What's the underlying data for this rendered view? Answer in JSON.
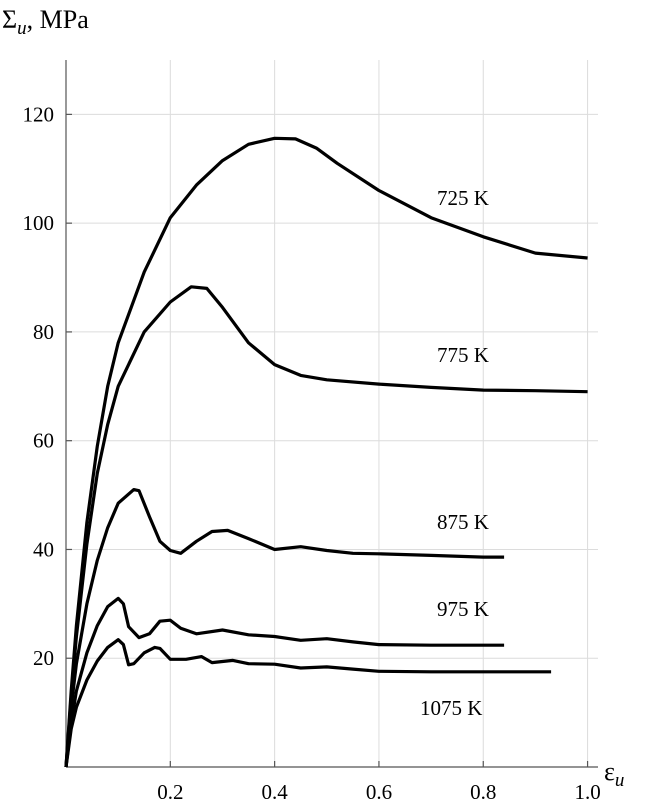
{
  "chart_data": {
    "type": "line",
    "ylabel_symbol": "Σ",
    "ylabel_sub": "u",
    "ylabel_unit": ", MPa",
    "xlabel_symbol": "ε",
    "xlabel_sub": "u",
    "xlim": [
      0,
      1.02
    ],
    "ylim": [
      0,
      130
    ],
    "xticks": [
      0.2,
      0.4,
      0.6,
      0.8,
      {
        "value": 1,
        "label": "1.0"
      }
    ],
    "yticks": [
      20,
      40,
      60,
      80,
      100,
      120
    ],
    "grid": true,
    "series": [
      {
        "name": "725 K",
        "color": "#000000",
        "x": [
          0,
          0.01,
          0.02,
          0.04,
          0.06,
          0.08,
          0.1,
          0.15,
          0.2,
          0.25,
          0.3,
          0.35,
          0.4,
          0.44,
          0.48,
          0.52,
          0.6,
          0.7,
          0.8,
          0.9,
          1.0
        ],
        "values": [
          0,
          14,
          26,
          45,
          59,
          70,
          78,
          91,
          101,
          107,
          111.5,
          114.5,
          115.6,
          115.5,
          113.8,
          111,
          106,
          101,
          97.5,
          94.5,
          93.6
        ]
      },
      {
        "name": "775 K",
        "color": "#000000",
        "x": [
          0,
          0.01,
          0.02,
          0.04,
          0.06,
          0.08,
          0.1,
          0.15,
          0.2,
          0.24,
          0.27,
          0.3,
          0.35,
          0.4,
          0.45,
          0.5,
          0.6,
          0.7,
          0.8,
          0.9,
          1.0
        ],
        "values": [
          0,
          13,
          24,
          41,
          54,
          63,
          70,
          80,
          85.5,
          88.3,
          88,
          84.5,
          78,
          74,
          72,
          71.2,
          70.4,
          69.8,
          69.3,
          69.2,
          69
        ]
      },
      {
        "name": "875 K",
        "color": "#000000",
        "x": [
          0,
          0.01,
          0.02,
          0.04,
          0.06,
          0.08,
          0.1,
          0.13,
          0.14,
          0.16,
          0.18,
          0.2,
          0.22,
          0.25,
          0.28,
          0.31,
          0.35,
          0.4,
          0.45,
          0.5,
          0.55,
          0.6,
          0.7,
          0.8,
          0.84
        ],
        "values": [
          0,
          11,
          19,
          30,
          38,
          44,
          48.5,
          51,
          50.8,
          46,
          41.5,
          39.8,
          39.3,
          41.5,
          43.3,
          43.5,
          42,
          40,
          40.5,
          39.8,
          39.3,
          39.2,
          38.9,
          38.6,
          38.6
        ]
      },
      {
        "name": "975 K",
        "color": "#000000",
        "x": [
          0,
          0.01,
          0.02,
          0.04,
          0.06,
          0.08,
          0.1,
          0.11,
          0.12,
          0.14,
          0.16,
          0.18,
          0.2,
          0.22,
          0.25,
          0.3,
          0.35,
          0.4,
          0.45,
          0.5,
          0.55,
          0.6,
          0.7,
          0.84
        ],
        "values": [
          0,
          8,
          14,
          21,
          26,
          29.5,
          31,
          30,
          25.8,
          23.8,
          24.5,
          26.8,
          27,
          25.5,
          24.5,
          25.2,
          24.3,
          24,
          23.3,
          23.6,
          23,
          22.5,
          22.4,
          22.4
        ]
      },
      {
        "name": "1075 K",
        "color": "#000000",
        "x": [
          0,
          0.01,
          0.02,
          0.04,
          0.06,
          0.08,
          0.1,
          0.11,
          0.12,
          0.13,
          0.15,
          0.17,
          0.18,
          0.2,
          0.23,
          0.26,
          0.28,
          0.32,
          0.35,
          0.4,
          0.45,
          0.5,
          0.55,
          0.6,
          0.7,
          0.93
        ],
        "values": [
          0,
          7,
          11,
          16,
          19.5,
          22,
          23.4,
          22.5,
          18.8,
          19,
          21,
          22,
          21.8,
          19.8,
          19.8,
          20.3,
          19.2,
          19.6,
          19,
          18.9,
          18.2,
          18.4,
          18,
          17.6,
          17.5,
          17.5
        ]
      }
    ]
  }
}
